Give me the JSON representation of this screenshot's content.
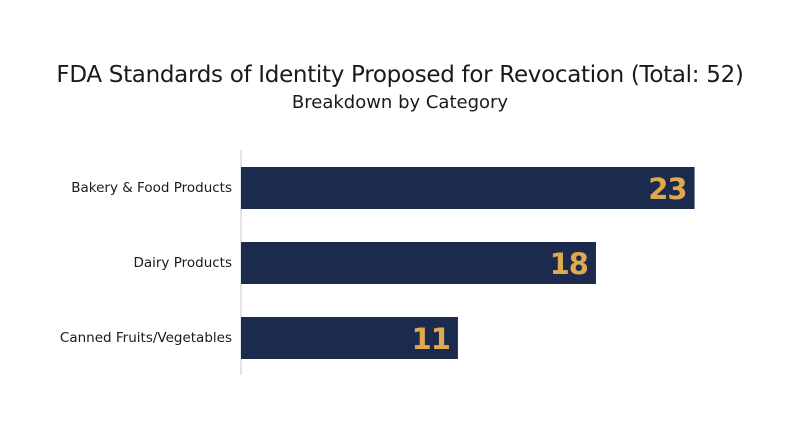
{
  "chart_data": {
    "type": "bar",
    "orientation": "horizontal",
    "title": "FDA Standards of Identity Proposed for Revocation (Total: 52)",
    "subtitle": "Breakdown by Category",
    "categories": [
      "Bakery & Food Products",
      "Dairy Products",
      "Canned Fruits/Vegetables"
    ],
    "values": [
      23,
      18,
      11
    ],
    "xlim": [
      0,
      25
    ],
    "grid": false,
    "legend": "none",
    "colors": {
      "bar": "#1b2a4d",
      "value_label": "#e0a94e",
      "axis": "#c8c8c8"
    }
  }
}
